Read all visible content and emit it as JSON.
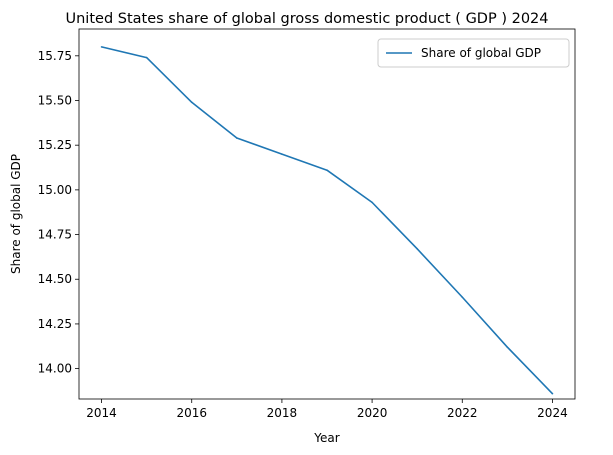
{
  "chart_data": {
    "type": "line",
    "title": "United States share of global gross domestic product ( GDP ) 2024",
    "xlabel": "Year",
    "ylabel": "Share of global GDP",
    "x": [
      2014,
      2015,
      2016,
      2017,
      2018,
      2019,
      2020,
      2021,
      2022,
      2023,
      2024
    ],
    "series": [
      {
        "name": "Share of global GDP",
        "values": [
          15.8,
          15.74,
          15.49,
          15.29,
          15.2,
          15.11,
          14.93,
          14.67,
          14.4,
          14.12,
          13.86
        ],
        "color": "#1f77b4"
      }
    ],
    "xlim": [
      2013.5,
      2024.5
    ],
    "ylim": [
      13.83,
      15.9
    ],
    "xticks": [
      2014,
      2016,
      2018,
      2020,
      2022,
      2024
    ],
    "xtick_labels": [
      "2014",
      "2016",
      "2018",
      "2020",
      "2022",
      "2024"
    ],
    "yticks": [
      14.0,
      14.25,
      14.5,
      14.75,
      15.0,
      15.25,
      15.5,
      15.75
    ],
    "ytick_labels": [
      "14.00",
      "14.25",
      "14.50",
      "14.75",
      "15.00",
      "15.25",
      "15.50",
      "15.75"
    ],
    "grid": false,
    "legend_position": "top-right"
  }
}
